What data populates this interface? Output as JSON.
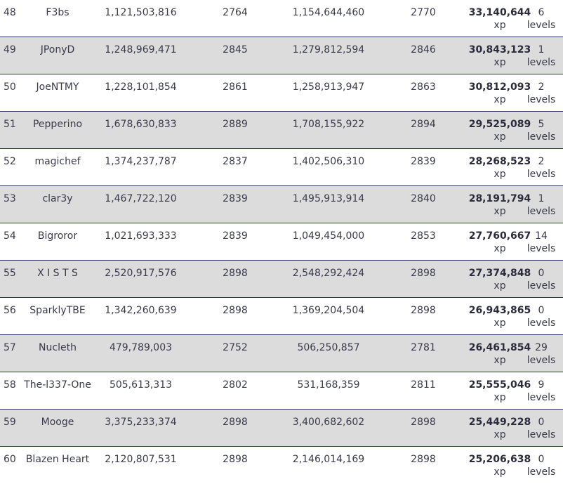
{
  "rows": [
    {
      "rank": "48",
      "name": "F3bs",
      "xp_start": "1,121,503,816",
      "level_start": "2764",
      "xp_end": "1,154,644,460",
      "level_end": "2770",
      "xp_gain": "33,140,644",
      "xp_unit": "xp",
      "level_gain": "6",
      "level_unit": "levels"
    },
    {
      "rank": "49",
      "name": "JPonyD",
      "xp_start": "1,248,969,471",
      "level_start": "2845",
      "xp_end": "1,279,812,594",
      "level_end": "2846",
      "xp_gain": "30,843,123",
      "xp_unit": "xp",
      "level_gain": "1",
      "level_unit": "levels"
    },
    {
      "rank": "50",
      "name": "JoeNTMY",
      "xp_start": "1,228,101,854",
      "level_start": "2861",
      "xp_end": "1,258,913,947",
      "level_end": "2863",
      "xp_gain": "30,812,093",
      "xp_unit": "xp",
      "level_gain": "2",
      "level_unit": "levels"
    },
    {
      "rank": "51",
      "name": "Pepperino",
      "xp_start": "1,678,630,833",
      "level_start": "2889",
      "xp_end": "1,708,155,922",
      "level_end": "2894",
      "xp_gain": "29,525,089",
      "xp_unit": "xp",
      "level_gain": "5",
      "level_unit": "levels"
    },
    {
      "rank": "52",
      "name": "magichef",
      "xp_start": "1,374,237,787",
      "level_start": "2837",
      "xp_end": "1,402,506,310",
      "level_end": "2839",
      "xp_gain": "28,268,523",
      "xp_unit": "xp",
      "level_gain": "2",
      "level_unit": "levels"
    },
    {
      "rank": "53",
      "name": "clar3y",
      "xp_start": "1,467,722,120",
      "level_start": "2839",
      "xp_end": "1,495,913,914",
      "level_end": "2840",
      "xp_gain": "28,191,794",
      "xp_unit": "xp",
      "level_gain": "1",
      "level_unit": "levels"
    },
    {
      "rank": "54",
      "name": "Bigroror",
      "xp_start": "1,021,693,333",
      "level_start": "2839",
      "xp_end": "1,049,454,000",
      "level_end": "2853",
      "xp_gain": "27,760,667",
      "xp_unit": "xp",
      "level_gain": "14",
      "level_unit": "levels"
    },
    {
      "rank": "55",
      "name": "X I S T S",
      "xp_start": "2,520,917,576",
      "level_start": "2898",
      "xp_end": "2,548,292,424",
      "level_end": "2898",
      "xp_gain": "27,374,848",
      "xp_unit": "xp",
      "level_gain": "0",
      "level_unit": "levels"
    },
    {
      "rank": "56",
      "name": "SparklyTBE",
      "xp_start": "1,342,260,639",
      "level_start": "2898",
      "xp_end": "1,369,204,504",
      "level_end": "2898",
      "xp_gain": "26,943,865",
      "xp_unit": "xp",
      "level_gain": "0",
      "level_unit": "levels"
    },
    {
      "rank": "57",
      "name": "Nucleth",
      "xp_start": "479,789,003",
      "level_start": "2752",
      "xp_end": "506,250,857",
      "level_end": "2781",
      "xp_gain": "26,461,854",
      "xp_unit": "xp",
      "level_gain": "29",
      "level_unit": "levels"
    },
    {
      "rank": "58",
      "name": "The-l337-One",
      "xp_start": "505,613,313",
      "level_start": "2802",
      "xp_end": "531,168,359",
      "level_end": "2811",
      "xp_gain": "25,555,046",
      "xp_unit": "xp",
      "level_gain": "9",
      "level_unit": "levels"
    },
    {
      "rank": "59",
      "name": "Mooge",
      "xp_start": "3,375,233,374",
      "level_start": "2898",
      "xp_end": "3,400,682,602",
      "level_end": "2898",
      "xp_gain": "25,449,228",
      "xp_unit": "xp",
      "level_gain": "0",
      "level_unit": "levels"
    },
    {
      "rank": "60",
      "name": "Blazen Heart",
      "xp_start": "2,120,807,531",
      "level_start": "2898",
      "xp_end": "2,146,014,169",
      "level_end": "2898",
      "xp_gain": "25,206,638",
      "xp_unit": "xp",
      "level_gain": "0",
      "level_unit": "levels"
    }
  ]
}
